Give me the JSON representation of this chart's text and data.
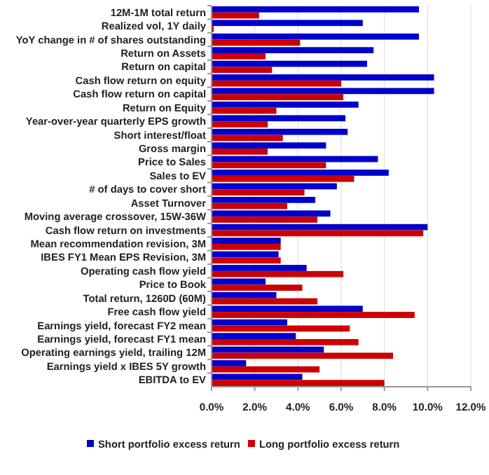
{
  "chart_data": {
    "type": "bar",
    "orientation": "horizontal",
    "categories": [
      "12M-1M total return",
      "Realized vol, 1Y daily",
      "YoY change in # of shares outstanding",
      "Return on Assets",
      "Return on capital",
      "Cash flow return on equity",
      "Cash flow return on capital",
      "Return on Equity",
      "Year-over-year quarterly EPS growth",
      "Short interest/float",
      "Gross margin",
      "Price to Sales",
      "Sales to EV",
      "# of days to cover short",
      "Asset Turnover",
      "Moving average crossover, 15W-36W",
      "Cash flow return on investments",
      "Mean recommendation revision, 3M",
      "IBES FY1 Mean EPS Revision, 3M",
      "Operating cash flow yield",
      "Price to Book",
      "Total return, 1260D (60M)",
      "Free cash flow yield",
      "Earnings yield, forecast FY2 mean",
      "Earnings yield, forecast FY1 mean",
      "Operating earnings yield, trailing 12M",
      "Earnings yield x IBES 5Y growth",
      "EBITDA to EV"
    ],
    "series": [
      {
        "name": "Short portfolio excess return",
        "color": "#0000cc",
        "values": [
          9.6,
          7.0,
          9.6,
          7.5,
          7.2,
          10.3,
          10.3,
          6.8,
          6.2,
          6.3,
          5.3,
          7.7,
          8.2,
          5.8,
          4.8,
          5.5,
          10.0,
          3.2,
          3.1,
          4.4,
          2.5,
          3.0,
          7.0,
          3.5,
          3.9,
          5.2,
          1.6,
          4.2
        ]
      },
      {
        "name": "Long portfolio excess return",
        "color": "#cc0000",
        "values": [
          2.2,
          0.1,
          4.1,
          2.5,
          2.8,
          6.0,
          6.1,
          3.0,
          2.6,
          3.3,
          2.6,
          5.3,
          6.6,
          4.3,
          3.5,
          4.9,
          9.8,
          3.2,
          3.2,
          6.1,
          4.2,
          4.9,
          9.4,
          6.4,
          6.8,
          8.4,
          5.0,
          8.0
        ]
      }
    ],
    "xlim": [
      0,
      12
    ],
    "xticks": [
      {
        "value": 0,
        "label": "0.0%"
      },
      {
        "value": 2,
        "label": "2.0%"
      },
      {
        "value": 4,
        "label": "4.0%"
      },
      {
        "value": 6,
        "label": "6.0%"
      },
      {
        "value": 8,
        "label": "8.0%"
      },
      {
        "value": 10,
        "label": "10.0%"
      },
      {
        "value": 12,
        "label": "12.0%"
      }
    ],
    "grid": "x",
    "legend": "bottom"
  }
}
